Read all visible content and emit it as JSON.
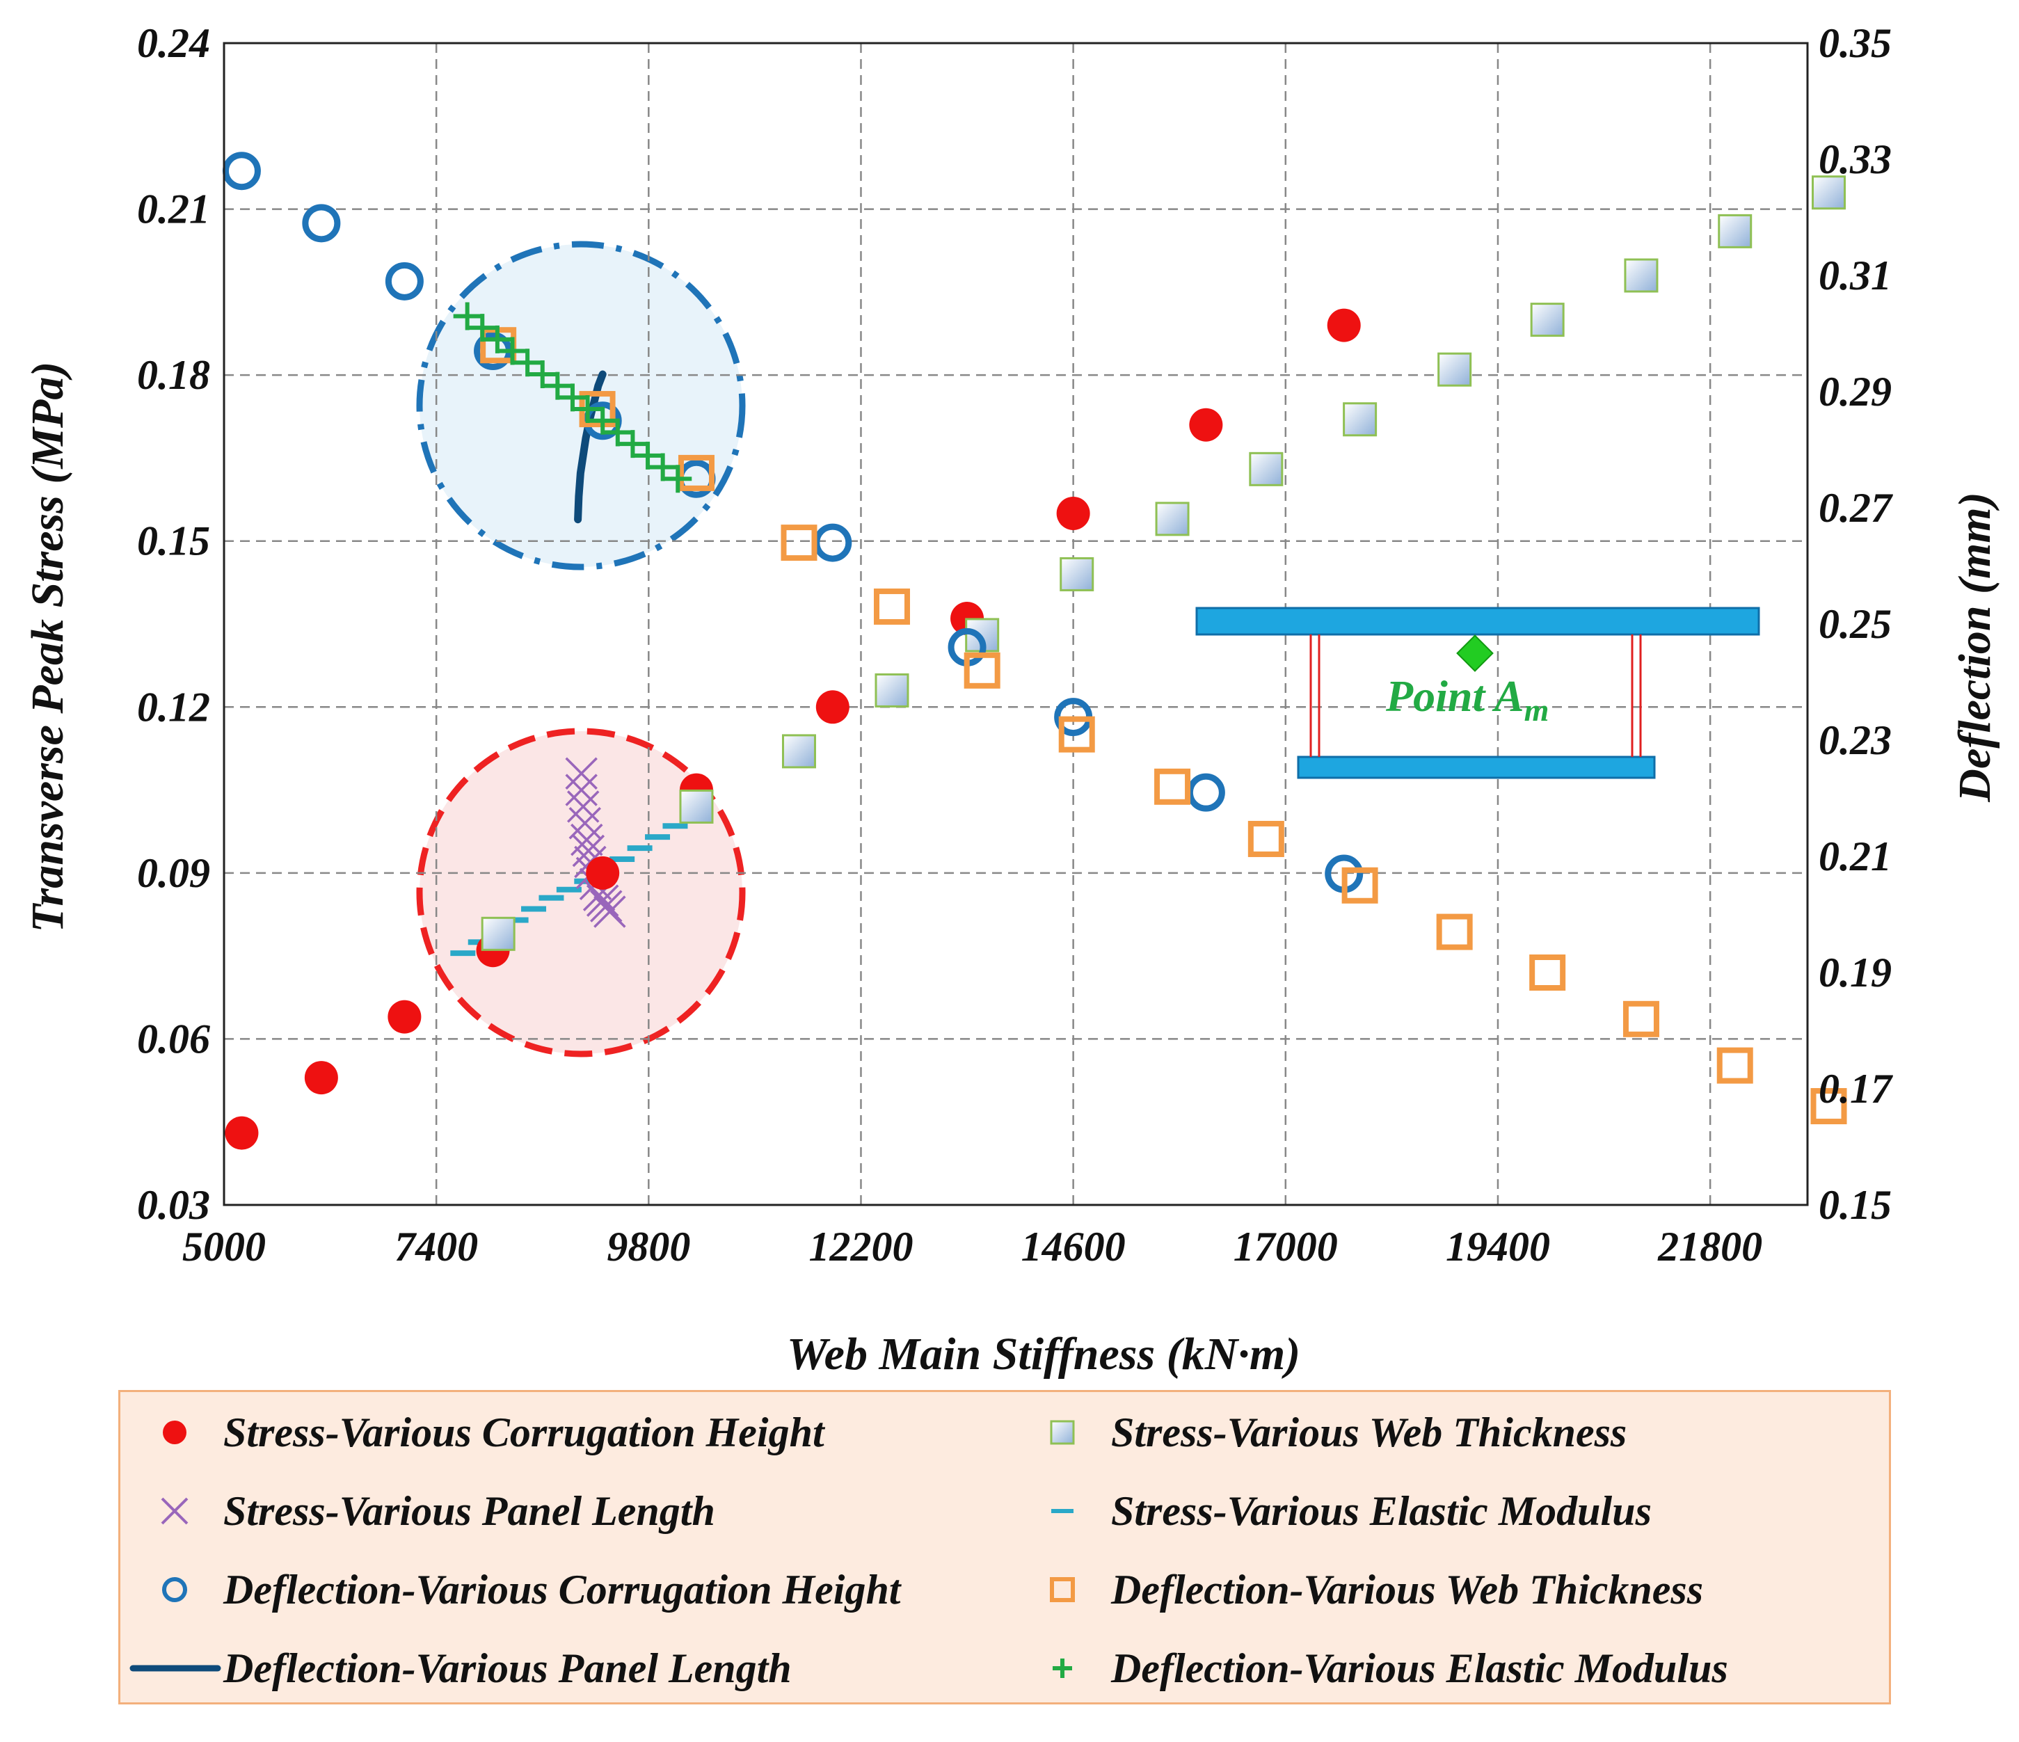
{
  "chart_data": {
    "type": "scatter",
    "xlabel": "Web Main Stiffness (kN·m)",
    "ylabel_left": "Transverse Peak Stress (MPa)",
    "ylabel_right": "Deflection (mm)",
    "x_ticks": [
      "5000",
      "7400",
      "9800",
      "12200",
      "14600",
      "17000",
      "19400",
      "21800"
    ],
    "y_left_ticks": [
      "0.03",
      "0.06",
      "0.09",
      "0.12",
      "0.15",
      "0.18",
      "0.21",
      "0.24"
    ],
    "y_right_ticks": [
      "0.15",
      "0.17",
      "0.19",
      "0.21",
      "0.23",
      "0.25",
      "0.27",
      "0.29",
      "0.31",
      "0.33",
      "0.35"
    ],
    "xlim": [
      5000,
      22900
    ],
    "ylim_left": [
      0.03,
      0.24
    ],
    "ylim_right": [
      0.15,
      0.35
    ],
    "grid": true,
    "series": [
      {
        "name": "Stress-Various Corrugation Height",
        "axis": "left",
        "marker": "filled-circle",
        "color": "#ee1111",
        "x": [
          5200,
          6100,
          7040,
          8040,
          9280,
          10340,
          11880,
          13400,
          14600,
          16100,
          17660
        ],
        "y": [
          0.043,
          0.053,
          0.064,
          0.076,
          0.09,
          0.105,
          0.12,
          0.136,
          0.155,
          0.171,
          0.189
        ]
      },
      {
        "name": "Stress-Various Web Thickness",
        "axis": "left",
        "marker": "gradient-square",
        "color": "#8fc054",
        "x": [
          8100,
          10340,
          11500,
          12550,
          13570,
          14640,
          15720,
          16780,
          17840,
          18910,
          19960,
          21020,
          22080,
          23140
        ],
        "y": [
          0.079,
          0.102,
          0.112,
          0.123,
          0.133,
          0.144,
          0.154,
          0.163,
          0.172,
          0.181,
          0.19,
          0.198,
          0.206,
          0.213
        ]
      },
      {
        "name": "Stress-Various Panel Length",
        "axis": "left",
        "marker": "x-cross",
        "color": "#9966bb",
        "x": [
          9040,
          9040,
          9060,
          9080,
          9100,
          9120,
          9140,
          9160,
          9200,
          9240,
          9280,
          9320,
          9360
        ],
        "y": [
          0.108,
          0.105,
          0.102,
          0.099,
          0.096,
          0.094,
          0.092,
          0.09,
          0.088,
          0.086,
          0.085,
          0.084,
          0.083
        ]
      },
      {
        "name": "Stress-Various Elastic Modulus",
        "axis": "left",
        "marker": "dash",
        "color": "#2aa8c8",
        "x": [
          7700,
          7900,
          8100,
          8300,
          8500,
          8700,
          8900,
          9100,
          9300,
          9500,
          9700,
          9900,
          10100,
          10300
        ],
        "y": [
          0.0755,
          0.0775,
          0.0795,
          0.0815,
          0.0835,
          0.0855,
          0.087,
          0.0885,
          0.0905,
          0.0925,
          0.0945,
          0.0965,
          0.0985,
          0.101
        ]
      },
      {
        "name": "Deflection-Various Corrugation Height",
        "axis": "right",
        "marker": "open-circle",
        "color": "#1f74b8",
        "x": [
          5200,
          6100,
          7040,
          8040,
          9280,
          10340,
          11880,
          13400,
          14600,
          16100,
          17660
        ],
        "y": [
          0.328,
          0.319,
          0.309,
          0.297,
          0.285,
          0.275,
          0.264,
          0.246,
          0.234,
          0.221,
          0.207
        ]
      },
      {
        "name": "Deflection-Various Web Thickness",
        "axis": "right",
        "marker": "open-square",
        "color": "#f39a44",
        "x": [
          8100,
          9220,
          10340,
          11500,
          12550,
          13570,
          14640,
          15720,
          16780,
          17840,
          18910,
          19960,
          21020,
          22080,
          23140
        ],
        "y": [
          0.298,
          0.287,
          0.276,
          0.264,
          0.253,
          0.242,
          0.231,
          0.222,
          0.213,
          0.205,
          0.197,
          0.19,
          0.182,
          0.174,
          0.167
        ]
      },
      {
        "name": "Deflection-Various Panel Length",
        "axis": "right",
        "marker": "line",
        "color": "#0e4a7a",
        "x": [
          9000,
          9010,
          9030,
          9060,
          9090,
          9130,
          9180,
          9230,
          9280
        ],
        "y": [
          0.268,
          0.272,
          0.276,
          0.279,
          0.282,
          0.285,
          0.288,
          0.291,
          0.293
        ]
      },
      {
        "name": "Deflection-Various Elastic Modulus",
        "axis": "right",
        "marker": "plus",
        "color": "#22aa44",
        "x": [
          7750,
          7920,
          8090,
          8260,
          8430,
          8600,
          8770,
          8940,
          9110,
          9280,
          9450,
          9620,
          9790,
          9960,
          10130
        ],
        "y": [
          0.303,
          0.301,
          0.299,
          0.297,
          0.295,
          0.293,
          0.291,
          0.289,
          0.287,
          0.285,
          0.283,
          0.281,
          0.279,
          0.277,
          0.275
        ]
      }
    ],
    "annotation": {
      "text": "Point A",
      "subscript": "m"
    }
  },
  "legend": [
    {
      "label": "Stress-Various Corrugation Height",
      "symbol": "filled-circle",
      "color": "#ee1111"
    },
    {
      "label": "Stress-Various Web Thickness",
      "symbol": "gradient-square",
      "color": "#8fc054"
    },
    {
      "label": "Stress-Various Panel Length",
      "symbol": "x-cross",
      "color": "#9966bb"
    },
    {
      "label": "Stress-Various Elastic Modulus",
      "symbol": "dash",
      "color": "#2aa8c8"
    },
    {
      "label": "Deflection-Various Corrugation Height",
      "symbol": "open-circle",
      "color": "#1f74b8"
    },
    {
      "label": "Deflection-Various Web Thickness",
      "symbol": "open-square",
      "color": "#f39a44"
    },
    {
      "label": "Deflection-Various Panel Length",
      "symbol": "line",
      "color": "#0e4a7a"
    },
    {
      "label": "Deflection-Various Elastic Modulus",
      "symbol": "plus",
      "color": "#22aa44"
    }
  ],
  "colors": {
    "grid": "#888888",
    "beam_fill": "#1ea6e0",
    "beam_edge": "#0f6ea8",
    "web_line": "#e02020",
    "point_marker": "#22cc22",
    "point_text": "#22aa44",
    "zoom_blue_fill": "#e8f3fa",
    "zoom_blue_edge": "#1f74b8",
    "zoom_red_fill": "#fbe6e6",
    "zoom_red_edge": "#ee2222",
    "legend_bg": "#fdebdf",
    "legend_edge": "#f3b07c"
  }
}
